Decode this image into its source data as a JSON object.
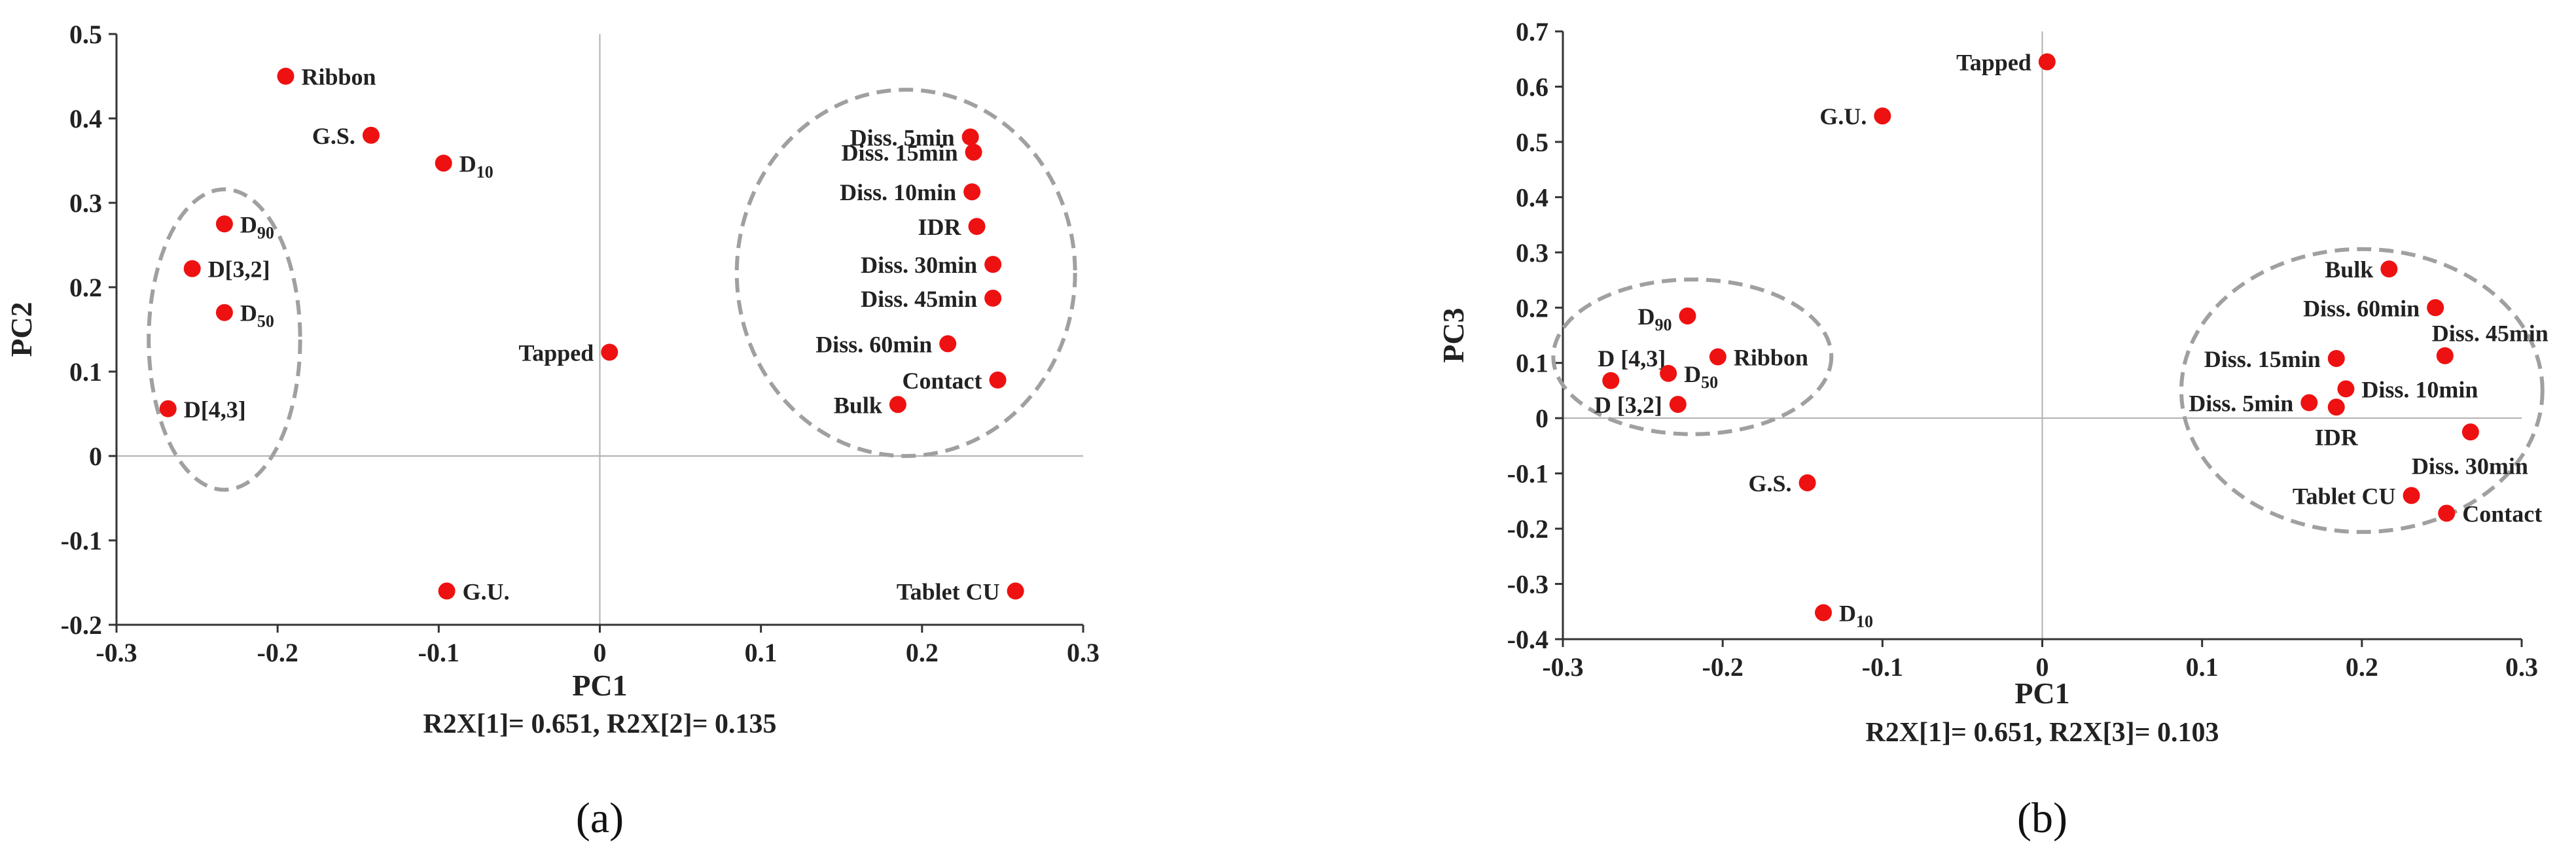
{
  "chart_data": [
    {
      "type": "scatter",
      "panel_label": "(a)",
      "xlabel": "PC1",
      "ylabel": "PC2",
      "caption": "R2X[1]= 0.651, R2X[2]= 0.135",
      "xlim": [
        -0.3,
        0.3
      ],
      "ylim": [
        -0.2,
        0.5
      ],
      "xticks": [
        -0.3,
        -0.2,
        -0.1,
        0,
        0.1,
        0.2,
        0.3
      ],
      "xtick_labels": [
        "-0.3",
        "-0.2",
        "-0.1",
        "0",
        "0.1",
        "0.2",
        "0.3"
      ],
      "yticks": [
        -0.2,
        -0.1,
        0,
        0.1,
        0.2,
        0.3,
        0.4,
        0.5
      ],
      "ytick_labels": [
        "-0.2",
        "-0.1",
        "0",
        "0.1",
        "0.2",
        "0.3",
        "0.4",
        "0.5"
      ],
      "point_color": "#ee1111",
      "clusters": [
        {
          "cx": -0.233,
          "cy": 0.138,
          "rx": 0.047,
          "ry": 0.178
        },
        {
          "cx": 0.19,
          "cy": 0.217,
          "rx": 0.105,
          "ry": 0.217
        }
      ],
      "points": [
        {
          "label": "Ribbon",
          "sub": "",
          "x": -0.195,
          "y": 0.45,
          "pos": "right"
        },
        {
          "label": "G.S.",
          "sub": "",
          "x": -0.142,
          "y": 0.38,
          "pos": "left"
        },
        {
          "label": "D",
          "sub": "10",
          "x": -0.097,
          "y": 0.347,
          "pos": "right"
        },
        {
          "label": "D",
          "sub": "90",
          "x": -0.233,
          "y": 0.275,
          "pos": "right"
        },
        {
          "label": "D[3,2]",
          "sub": "",
          "x": -0.253,
          "y": 0.222,
          "pos": "right"
        },
        {
          "label": "D",
          "sub": "50",
          "x": -0.233,
          "y": 0.17,
          "pos": "right"
        },
        {
          "label": "D[4,3]",
          "sub": "",
          "x": -0.268,
          "y": 0.056,
          "pos": "right"
        },
        {
          "label": "G.U.",
          "sub": "",
          "x": -0.095,
          "y": -0.16,
          "pos": "right"
        },
        {
          "label": "Tapped",
          "sub": "",
          "x": 0.006,
          "y": 0.123,
          "pos": "left"
        },
        {
          "label": "Diss. 5min",
          "sub": "",
          "x": 0.23,
          "y": 0.378,
          "pos": "left"
        },
        {
          "label": "Diss. 15min",
          "sub": "",
          "x": 0.232,
          "y": 0.36,
          "pos": "left"
        },
        {
          "label": "Diss. 10min",
          "sub": "",
          "x": 0.231,
          "y": 0.313,
          "pos": "left"
        },
        {
          "label": "IDR",
          "sub": "",
          "x": 0.234,
          "y": 0.272,
          "pos": "left"
        },
        {
          "label": "Diss. 30min",
          "sub": "",
          "x": 0.244,
          "y": 0.227,
          "pos": "left"
        },
        {
          "label": "Diss. 45min",
          "sub": "",
          "x": 0.244,
          "y": 0.187,
          "pos": "left"
        },
        {
          "label": "Diss. 60min",
          "sub": "",
          "x": 0.216,
          "y": 0.133,
          "pos": "left"
        },
        {
          "label": "Contact",
          "sub": "",
          "x": 0.247,
          "y": 0.09,
          "pos": "left"
        },
        {
          "label": "Bulk",
          "sub": "",
          "x": 0.185,
          "y": 0.061,
          "pos": "left"
        },
        {
          "label": "Tablet CU",
          "sub": "",
          "x": 0.258,
          "y": -0.16,
          "pos": "left"
        }
      ]
    },
    {
      "type": "scatter",
      "panel_label": "(b)",
      "xlabel": "PC1",
      "ylabel": "PC3",
      "caption": "R2X[1]= 0.651, R2X[3]= 0.103",
      "xlim": [
        -0.3,
        0.3
      ],
      "ylim": [
        -0.4,
        0.7
      ],
      "xticks": [
        -0.3,
        -0.2,
        -0.1,
        0,
        0.1,
        0.2,
        0.3
      ],
      "xtick_labels": [
        "-0.3",
        "-0.2",
        "-0.1",
        "0",
        "0.1",
        "0.2",
        "0.3"
      ],
      "yticks": [
        -0.4,
        -0.3,
        -0.2,
        -0.1,
        0,
        0.1,
        0.2,
        0.3,
        0.4,
        0.5,
        0.6,
        0.7
      ],
      "ytick_labels": [
        "-0.4",
        "-0.3",
        "-0.2",
        "-0.1",
        "0",
        "0.1",
        "0.2",
        "0.3",
        "0.4",
        "0.5",
        "0.6",
        "0.7"
      ],
      "point_color": "#ee1111",
      "clusters": [
        {
          "cx": -0.219,
          "cy": 0.111,
          "rx": 0.087,
          "ry": 0.14
        },
        {
          "cx": 0.2,
          "cy": 0.05,
          "rx": 0.113,
          "ry": 0.256
        }
      ],
      "points": [
        {
          "label": "Tapped",
          "sub": "",
          "x": 0.003,
          "y": 0.645,
          "pos": "left"
        },
        {
          "label": "G.U.",
          "sub": "",
          "x": -0.1,
          "y": 0.547,
          "pos": "left"
        },
        {
          "label": "D",
          "sub": "90",
          "x": -0.222,
          "y": 0.185,
          "pos": "left"
        },
        {
          "label": "D [4,3]",
          "sub": "",
          "x": -0.27,
          "y": 0.068,
          "pos": "above-right"
        },
        {
          "label": "D",
          "sub": "50",
          "x": -0.234,
          "y": 0.081,
          "pos": "right"
        },
        {
          "label": "Ribbon",
          "sub": "",
          "x": -0.203,
          "y": 0.111,
          "pos": "right"
        },
        {
          "label": "D [3,2]",
          "sub": "",
          "x": -0.228,
          "y": 0.025,
          "pos": "left"
        },
        {
          "label": "G.S.",
          "sub": "",
          "x": -0.147,
          "y": -0.117,
          "pos": "left"
        },
        {
          "label": "D",
          "sub": "10",
          "x": -0.137,
          "y": -0.352,
          "pos": "right"
        },
        {
          "label": "Bulk",
          "sub": "",
          "x": 0.217,
          "y": 0.27,
          "pos": "left"
        },
        {
          "label": "Diss. 60min",
          "sub": "",
          "x": 0.246,
          "y": 0.2,
          "pos": "left"
        },
        {
          "label": "Diss. 45min",
          "sub": "",
          "x": 0.252,
          "y": 0.113,
          "pos": "above-right"
        },
        {
          "label": "Diss. 15min",
          "sub": "",
          "x": 0.184,
          "y": 0.108,
          "pos": "left"
        },
        {
          "label": "Diss. 10min",
          "sub": "",
          "x": 0.19,
          "y": 0.053,
          "pos": "right"
        },
        {
          "label": "Diss. 5min",
          "sub": "",
          "x": 0.167,
          "y": 0.028,
          "pos": "left"
        },
        {
          "label": "IDR",
          "sub": "",
          "x": 0.184,
          "y": 0.02,
          "pos": "below"
        },
        {
          "label": "Diss. 30min",
          "sub": "",
          "x": 0.268,
          "y": -0.025,
          "pos": "below-right"
        },
        {
          "label": "Tablet CU",
          "sub": "",
          "x": 0.231,
          "y": -0.14,
          "pos": "left"
        },
        {
          "label": "Contact",
          "sub": "",
          "x": 0.253,
          "y": -0.172,
          "pos": "right"
        }
      ]
    }
  ]
}
